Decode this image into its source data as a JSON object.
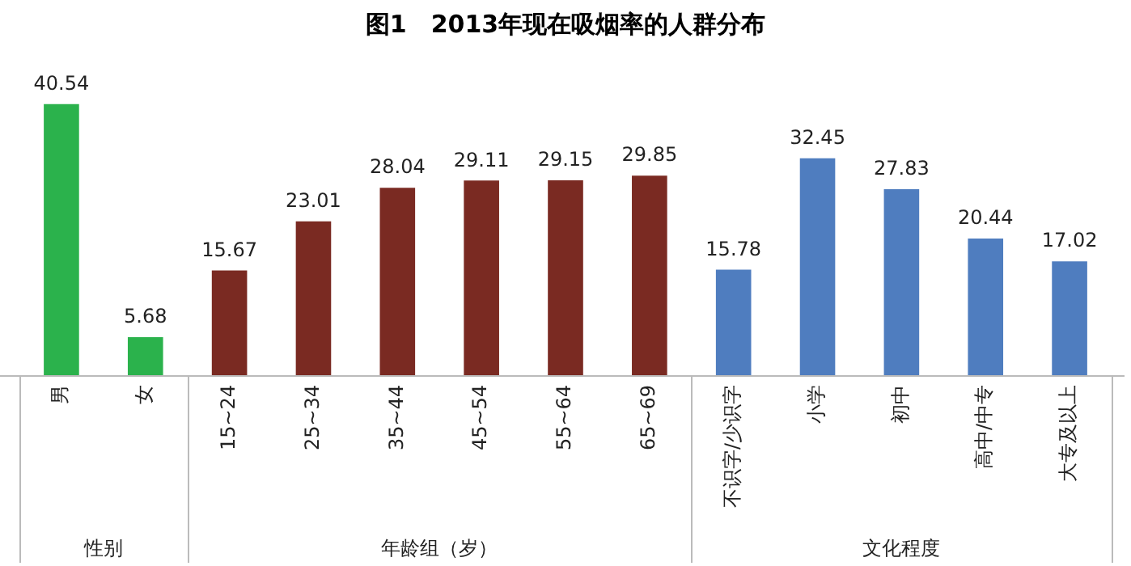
{
  "chart_data": {
    "type": "bar",
    "title": "图1　2013年现在吸烟率的人群分布",
    "categories": [
      "男",
      "女",
      "15~24",
      "25~34",
      "35~44",
      "45~54",
      "55~64",
      "65~69",
      "不识字/少识字",
      "小学",
      "初中",
      "高中/中专",
      "大专及以上"
    ],
    "values": [
      40.54,
      5.68,
      15.67,
      23.01,
      28.04,
      29.11,
      29.15,
      29.85,
      15.78,
      32.45,
      27.83,
      20.44,
      17.02
    ],
    "colors": [
      "#2bb24c",
      "#2bb24c",
      "#7a2a22",
      "#7a2a22",
      "#7a2a22",
      "#7a2a22",
      "#7a2a22",
      "#7a2a22",
      "#4f7dbf",
      "#4f7dbf",
      "#4f7dbf",
      "#4f7dbf",
      "#4f7dbf"
    ],
    "annotations": [
      "性别",
      "年龄组（岁）",
      "文化程度"
    ],
    "data_labels": true,
    "legend": false,
    "grid": false
  }
}
